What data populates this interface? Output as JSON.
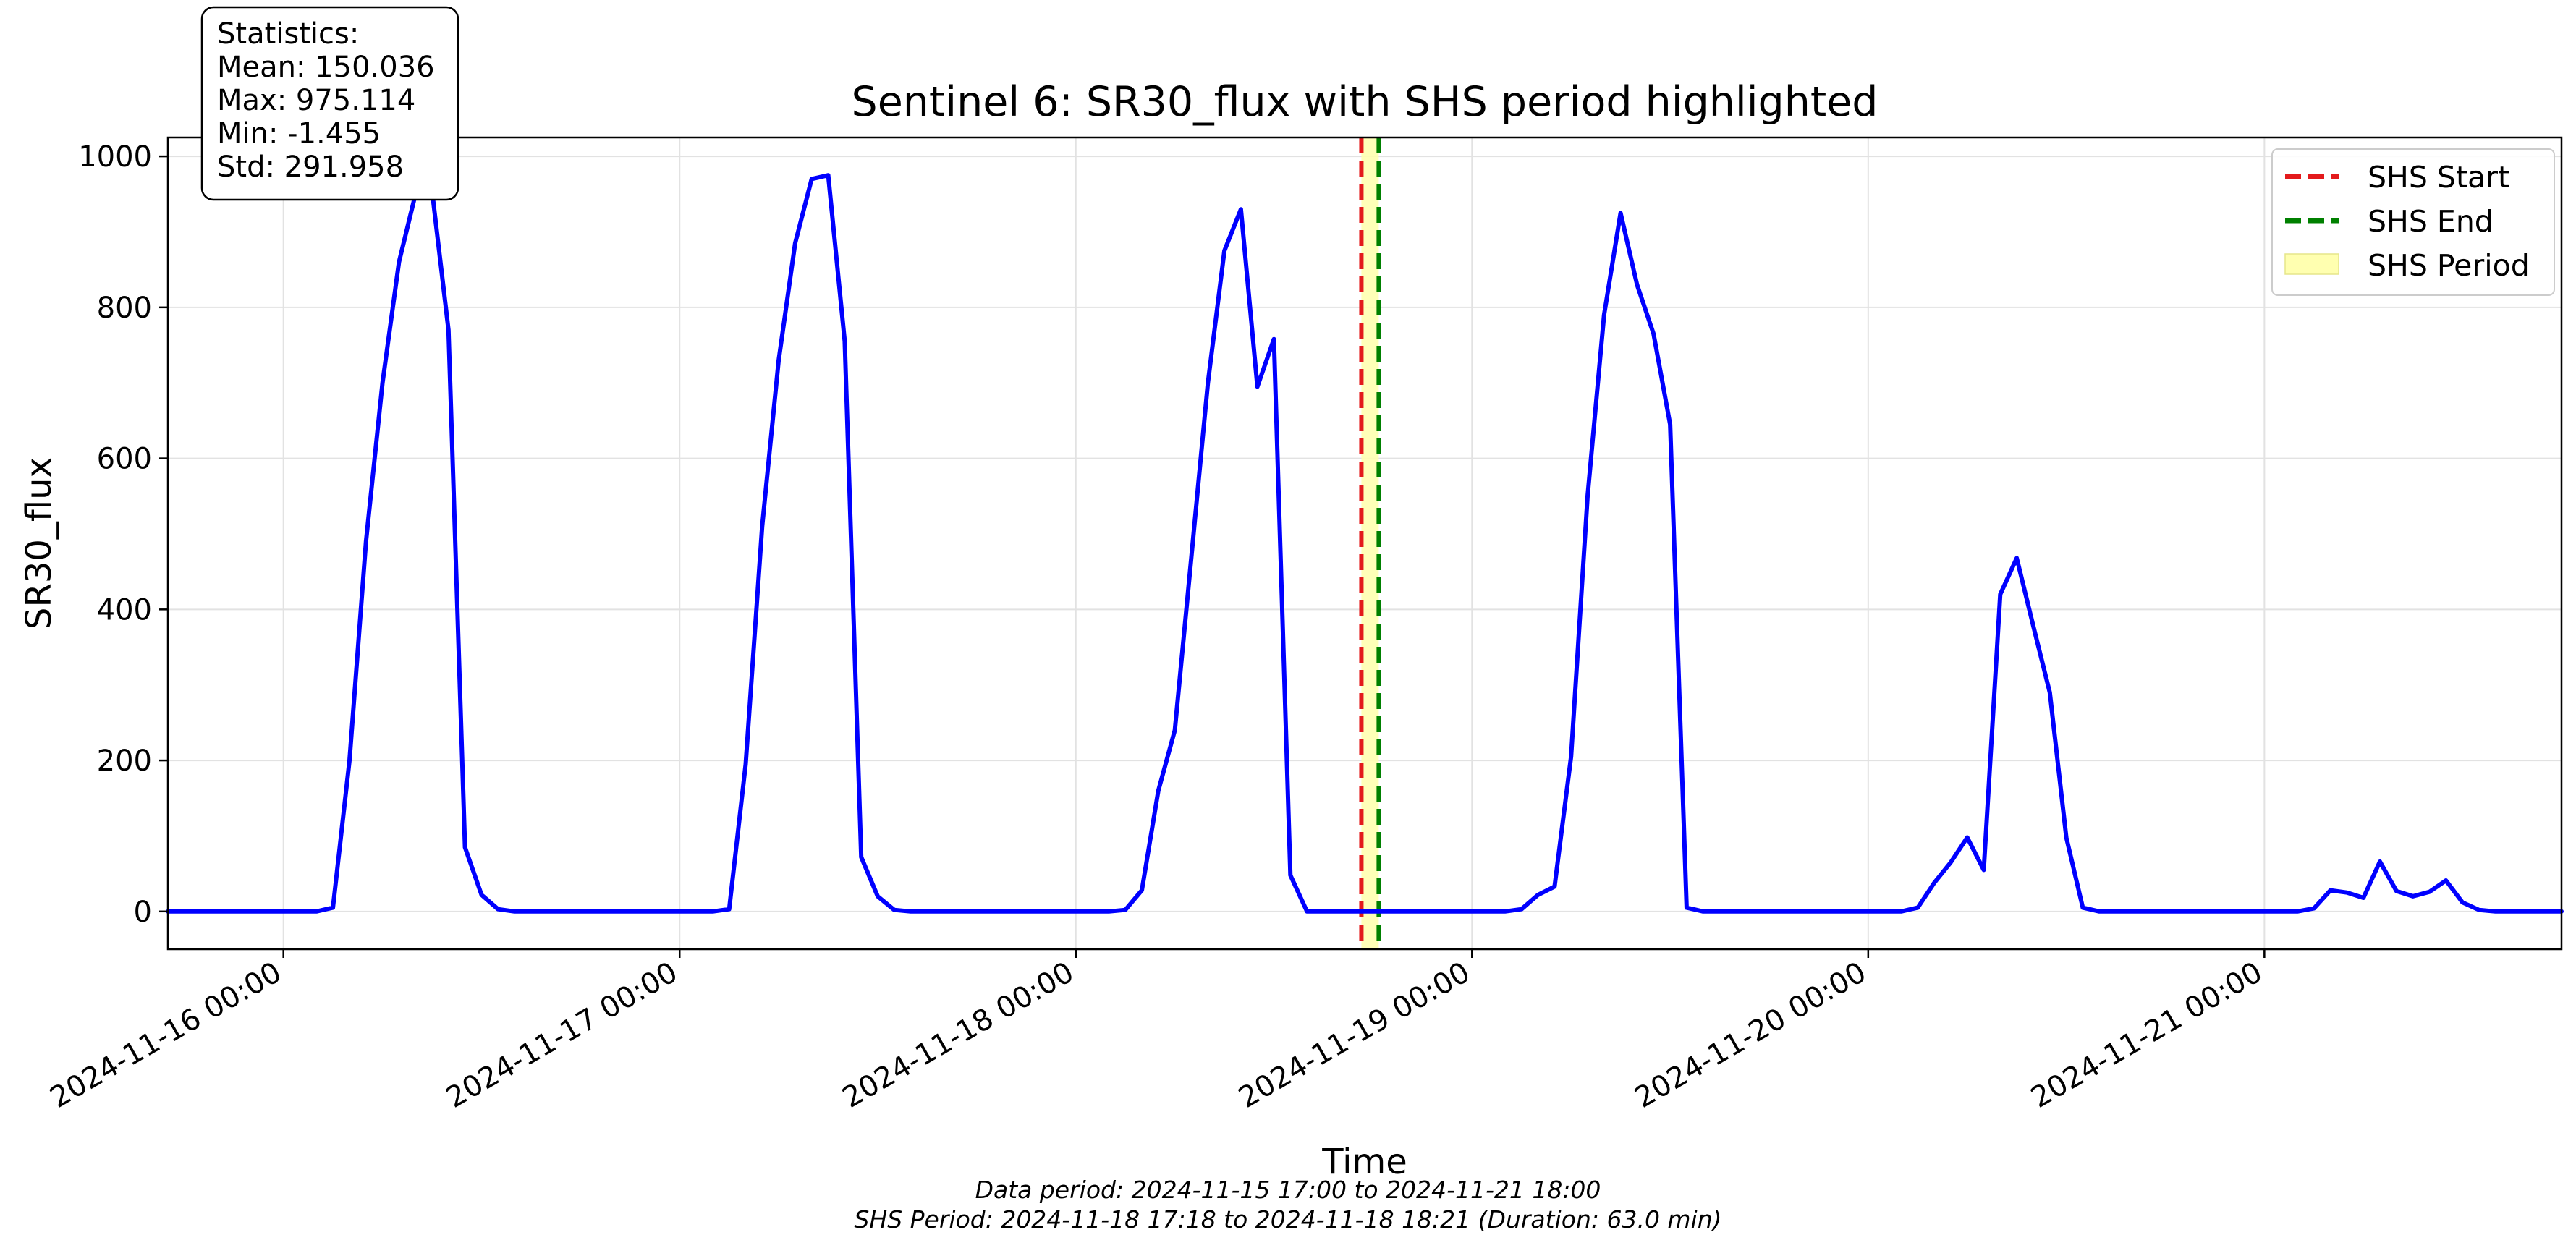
{
  "chart_data": {
    "type": "line",
    "title": "Sentinel 6: SR30_flux with SHS period highlighted",
    "xlabel": "Time",
    "ylabel": "SR30_flux",
    "xlim": [
      "2024-11-15 17:00",
      "2024-11-21 18:00"
    ],
    "ylim": [
      -50,
      1025
    ],
    "yticks": [
      0,
      200,
      400,
      600,
      800,
      1000
    ],
    "xticks": [
      "2024-11-16 00:00",
      "2024-11-17 00:00",
      "2024-11-18 00:00",
      "2024-11-19 00:00",
      "2024-11-20 00:00",
      "2024-11-21 00:00"
    ],
    "grid": true,
    "legend_position": "top-right",
    "colors": {
      "series": "#0000ff",
      "shs_start": "#e31a1c",
      "shs_end": "#008000",
      "shs_period": "#ffffb0"
    },
    "series": [
      {
        "name": "SR30_flux",
        "points": [
          [
            "2024-11-15 17:00",
            0
          ],
          [
            "2024-11-15 18:00",
            0
          ],
          [
            "2024-11-15 19:00",
            0
          ],
          [
            "2024-11-15 20:00",
            0
          ],
          [
            "2024-11-15 21:00",
            0
          ],
          [
            "2024-11-15 22:00",
            0
          ],
          [
            "2024-11-15 23:00",
            0
          ],
          [
            "2024-11-16 00:00",
            0
          ],
          [
            "2024-11-16 01:00",
            0
          ],
          [
            "2024-11-16 02:00",
            0
          ],
          [
            "2024-11-16 03:00",
            5
          ],
          [
            "2024-11-16 04:00",
            200
          ],
          [
            "2024-11-16 05:00",
            490
          ],
          [
            "2024-11-16 06:00",
            700
          ],
          [
            "2024-11-16 07:00",
            860
          ],
          [
            "2024-11-16 08:00",
            950
          ],
          [
            "2024-11-16 09:00",
            955
          ],
          [
            "2024-11-16 10:00",
            770
          ],
          [
            "2024-11-16 11:00",
            85
          ],
          [
            "2024-11-16 12:00",
            22
          ],
          [
            "2024-11-16 13:00",
            3
          ],
          [
            "2024-11-16 14:00",
            0
          ],
          [
            "2024-11-16 15:00",
            0
          ],
          [
            "2024-11-16 16:00",
            0
          ],
          [
            "2024-11-16 17:00",
            0
          ],
          [
            "2024-11-16 18:00",
            0
          ],
          [
            "2024-11-16 19:00",
            0
          ],
          [
            "2024-11-16 20:00",
            0
          ],
          [
            "2024-11-16 21:00",
            0
          ],
          [
            "2024-11-16 22:00",
            0
          ],
          [
            "2024-11-16 23:00",
            0
          ],
          [
            "2024-11-17 00:00",
            0
          ],
          [
            "2024-11-17 01:00",
            0
          ],
          [
            "2024-11-17 02:00",
            0
          ],
          [
            "2024-11-17 03:00",
            3
          ],
          [
            "2024-11-17 04:00",
            195
          ],
          [
            "2024-11-17 05:00",
            510
          ],
          [
            "2024-11-17 06:00",
            730
          ],
          [
            "2024-11-17 07:00",
            885
          ],
          [
            "2024-11-17 08:00",
            970
          ],
          [
            "2024-11-17 09:00",
            975
          ],
          [
            "2024-11-17 10:00",
            755
          ],
          [
            "2024-11-17 11:00",
            72
          ],
          [
            "2024-11-17 12:00",
            20
          ],
          [
            "2024-11-17 13:00",
            2
          ],
          [
            "2024-11-17 14:00",
            0
          ],
          [
            "2024-11-17 15:00",
            0
          ],
          [
            "2024-11-17 16:00",
            0
          ],
          [
            "2024-11-17 17:00",
            0
          ],
          [
            "2024-11-17 18:00",
            0
          ],
          [
            "2024-11-17 19:00",
            0
          ],
          [
            "2024-11-17 20:00",
            0
          ],
          [
            "2024-11-17 21:00",
            0
          ],
          [
            "2024-11-17 22:00",
            0
          ],
          [
            "2024-11-17 23:00",
            0
          ],
          [
            "2024-11-18 00:00",
            0
          ],
          [
            "2024-11-18 01:00",
            0
          ],
          [
            "2024-11-18 02:00",
            0
          ],
          [
            "2024-11-18 03:00",
            2
          ],
          [
            "2024-11-18 04:00",
            28
          ],
          [
            "2024-11-18 05:00",
            160
          ],
          [
            "2024-11-18 06:00",
            240
          ],
          [
            "2024-11-18 07:00",
            470
          ],
          [
            "2024-11-18 08:00",
            700
          ],
          [
            "2024-11-18 09:00",
            875
          ],
          [
            "2024-11-18 10:00",
            930
          ],
          [
            "2024-11-18 11:00",
            695
          ],
          [
            "2024-11-18 12:00",
            758
          ],
          [
            "2024-11-18 13:00",
            48
          ],
          [
            "2024-11-18 14:00",
            0
          ],
          [
            "2024-11-18 15:00",
            0
          ],
          [
            "2024-11-18 16:00",
            0
          ],
          [
            "2024-11-18 17:00",
            0
          ],
          [
            "2024-11-18 18:00",
            0
          ],
          [
            "2024-11-18 19:00",
            0
          ],
          [
            "2024-11-18 20:00",
            0
          ],
          [
            "2024-11-18 21:00",
            0
          ],
          [
            "2024-11-18 22:00",
            0
          ],
          [
            "2024-11-18 23:00",
            0
          ],
          [
            "2024-11-19 00:00",
            0
          ],
          [
            "2024-11-19 01:00",
            0
          ],
          [
            "2024-11-19 02:00",
            0
          ],
          [
            "2024-11-19 03:00",
            3
          ],
          [
            "2024-11-19 04:00",
            22
          ],
          [
            "2024-11-19 05:00",
            33
          ],
          [
            "2024-11-19 06:00",
            205
          ],
          [
            "2024-11-19 07:00",
            550
          ],
          [
            "2024-11-19 08:00",
            790
          ],
          [
            "2024-11-19 09:00",
            925
          ],
          [
            "2024-11-19 10:00",
            830
          ],
          [
            "2024-11-19 11:00",
            765
          ],
          [
            "2024-11-19 12:00",
            645
          ],
          [
            "2024-11-19 13:00",
            5
          ],
          [
            "2024-11-19 14:00",
            0
          ],
          [
            "2024-11-19 15:00",
            0
          ],
          [
            "2024-11-19 16:00",
            0
          ],
          [
            "2024-11-19 17:00",
            0
          ],
          [
            "2024-11-19 18:00",
            0
          ],
          [
            "2024-11-19 19:00",
            0
          ],
          [
            "2024-11-19 20:00",
            0
          ],
          [
            "2024-11-19 21:00",
            0
          ],
          [
            "2024-11-19 22:00",
            0
          ],
          [
            "2024-11-19 23:00",
            0
          ],
          [
            "2024-11-20 00:00",
            0
          ],
          [
            "2024-11-20 01:00",
            0
          ],
          [
            "2024-11-20 02:00",
            0
          ],
          [
            "2024-11-20 03:00",
            5
          ],
          [
            "2024-11-20 04:00",
            38
          ],
          [
            "2024-11-20 05:00",
            65
          ],
          [
            "2024-11-20 06:00",
            98
          ],
          [
            "2024-11-20 07:00",
            55
          ],
          [
            "2024-11-20 08:00",
            420
          ],
          [
            "2024-11-20 09:00",
            468
          ],
          [
            "2024-11-20 10:00",
            378
          ],
          [
            "2024-11-20 11:00",
            290
          ],
          [
            "2024-11-20 12:00",
            98
          ],
          [
            "2024-11-20 13:00",
            5
          ],
          [
            "2024-11-20 14:00",
            0
          ],
          [
            "2024-11-20 15:00",
            0
          ],
          [
            "2024-11-20 16:00",
            0
          ],
          [
            "2024-11-20 17:00",
            0
          ],
          [
            "2024-11-20 18:00",
            0
          ],
          [
            "2024-11-20 19:00",
            0
          ],
          [
            "2024-11-20 20:00",
            0
          ],
          [
            "2024-11-20 21:00",
            0
          ],
          [
            "2024-11-20 22:00",
            0
          ],
          [
            "2024-11-20 23:00",
            0
          ],
          [
            "2024-11-21 00:00",
            0
          ],
          [
            "2024-11-21 01:00",
            0
          ],
          [
            "2024-11-21 02:00",
            0
          ],
          [
            "2024-11-21 03:00",
            4
          ],
          [
            "2024-11-21 04:00",
            28
          ],
          [
            "2024-11-21 05:00",
            25
          ],
          [
            "2024-11-21 06:00",
            18
          ],
          [
            "2024-11-21 07:00",
            66
          ],
          [
            "2024-11-21 08:00",
            27
          ],
          [
            "2024-11-21 09:00",
            20
          ],
          [
            "2024-11-21 10:00",
            26
          ],
          [
            "2024-11-21 11:00",
            41
          ],
          [
            "2024-11-21 12:00",
            12
          ],
          [
            "2024-11-21 13:00",
            2
          ],
          [
            "2024-11-21 14:00",
            0
          ],
          [
            "2024-11-21 15:00",
            0
          ],
          [
            "2024-11-21 16:00",
            0
          ],
          [
            "2024-11-21 17:00",
            0
          ],
          [
            "2024-11-21 18:00",
            0
          ]
        ]
      }
    ],
    "shs_period": {
      "start": "2024-11-18 17:18",
      "end": "2024-11-18 18:21"
    },
    "legend": [
      {
        "label": "SHS Start",
        "style": "dashed-red"
      },
      {
        "label": "SHS End",
        "style": "dashed-green"
      },
      {
        "label": "SHS Period",
        "style": "yellow-fill"
      }
    ],
    "stats_box": {
      "heading": "Statistics:",
      "lines": [
        "Mean: 150.036",
        "Max: 975.114",
        "Min: -1.455",
        "Std: 291.958"
      ]
    },
    "footer": {
      "line1": "Data period: 2024-11-15 17:00 to 2024-11-21 18:00",
      "line2": "SHS Period: 2024-11-18 17:18 to 2024-11-18 18:21 (Duration: 63.0 min)"
    }
  }
}
